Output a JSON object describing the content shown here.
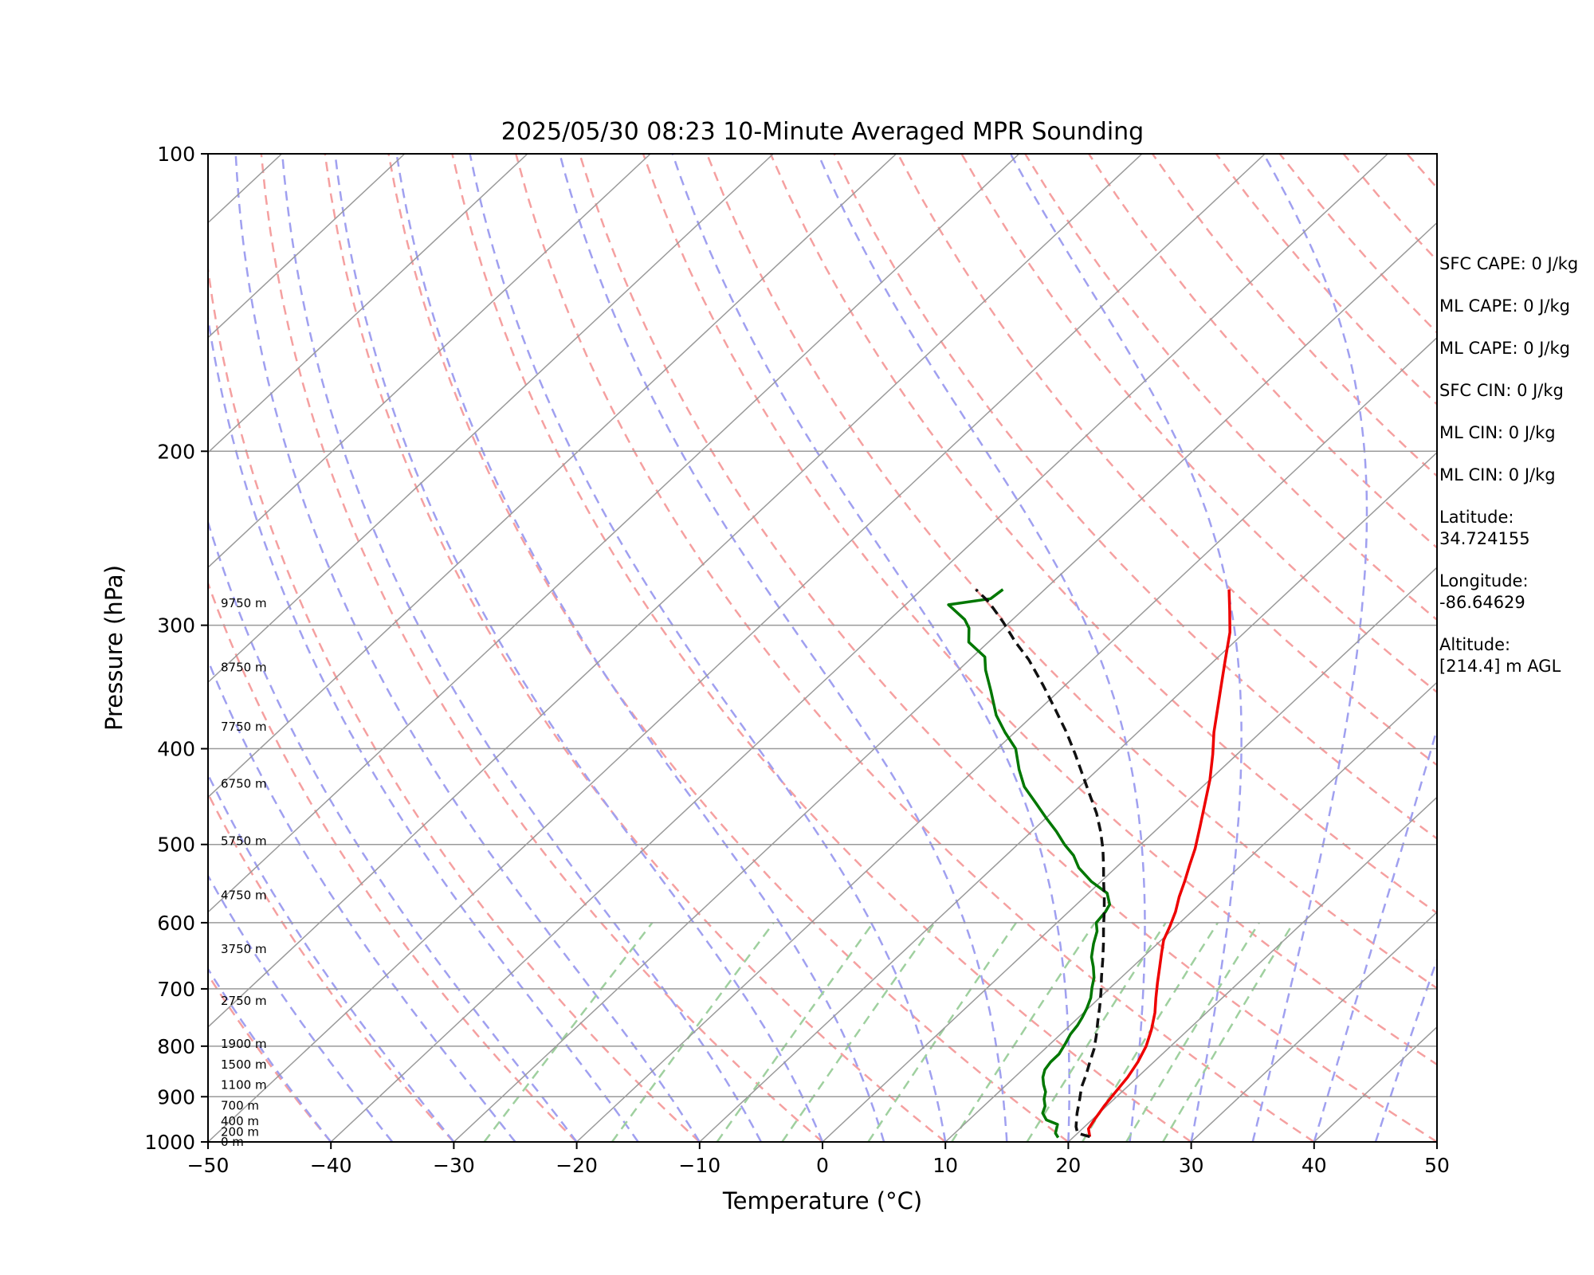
{
  "chart_data": {
    "type": "line",
    "title": "2025/05/30 08:23 10-Minute Averaged MPR Sounding",
    "xlabel": "Temperature (°C)",
    "ylabel": "Pressure (hPa)",
    "xlim": [
      -50,
      50
    ],
    "ylim": [
      1000,
      100
    ],
    "yscale": "log",
    "grid": true,
    "x_ticks": [
      "−50",
      "−40",
      "−30",
      "−20",
      "−10",
      "0",
      "10",
      "20",
      "30",
      "40",
      "50"
    ],
    "y_ticks": [
      "100",
      "200",
      "300",
      "400",
      "500",
      "600",
      "700",
      "800",
      "900",
      "1000"
    ],
    "series": [
      {
        "color": "#ee0000",
        "style": "solid",
        "points": [
          [
            21.3,
            988
          ],
          [
            20.5,
            970
          ],
          [
            20.2,
            950
          ],
          [
            19.8,
            920
          ],
          [
            19.5,
            890
          ],
          [
            19.2,
            860
          ],
          [
            18.7,
            830
          ],
          [
            18.0,
            800
          ],
          [
            17.0,
            770
          ],
          [
            15.8,
            740
          ],
          [
            14.6,
            715
          ],
          [
            13.4,
            690
          ],
          [
            12.2,
            665
          ],
          [
            11.2,
            645
          ],
          [
            10.2,
            625
          ],
          [
            9.5,
            605
          ],
          [
            8.7,
            585
          ],
          [
            7.7,
            565
          ],
          [
            6.8,
            545
          ],
          [
            5.8,
            525
          ],
          [
            4.8,
            505
          ],
          [
            3.3,
            480
          ],
          [
            1.7,
            455
          ],
          [
            0.0,
            430
          ],
          [
            -2.0,
            405
          ],
          [
            -3.8,
            385
          ],
          [
            -5.5,
            365
          ],
          [
            -7.3,
            345
          ],
          [
            -9.2,
            325
          ],
          [
            -11.2,
            305
          ],
          [
            -13.1,
            290
          ],
          [
            -15.0,
            276
          ]
        ]
      },
      {
        "color": "#007700",
        "style": "solid",
        "points": [
          [
            18.8,
            990
          ],
          [
            18.2,
            980
          ],
          [
            17.6,
            960
          ],
          [
            16.3,
            950
          ],
          [
            15.4,
            935
          ],
          [
            15.0,
            920
          ],
          [
            14.3,
            905
          ],
          [
            13.8,
            890
          ],
          [
            13.0,
            875
          ],
          [
            12.3,
            860
          ],
          [
            11.8,
            845
          ],
          [
            11.6,
            830
          ],
          [
            11.6,
            815
          ],
          [
            11.2,
            795
          ],
          [
            10.8,
            778
          ],
          [
            10.6,
            762
          ],
          [
            10.3,
            748
          ],
          [
            9.9,
            733
          ],
          [
            9.3,
            715
          ],
          [
            8.5,
            698
          ],
          [
            7.8,
            682
          ],
          [
            6.8,
            665
          ],
          [
            5.8,
            650
          ],
          [
            4.8,
            630
          ],
          [
            4.0,
            612
          ],
          [
            3.2,
            600
          ],
          [
            3.0,
            585
          ],
          [
            2.7,
            575
          ],
          [
            1.5,
            560
          ],
          [
            -0.8,
            545
          ],
          [
            -3.0,
            528
          ],
          [
            -4.5,
            513
          ],
          [
            -6.2,
            500
          ],
          [
            -8.0,
            485
          ],
          [
            -10.0,
            470
          ],
          [
            -12.0,
            455
          ],
          [
            -14.5,
            437
          ],
          [
            -16.4,
            420
          ],
          [
            -18.5,
            400
          ],
          [
            -20.8,
            385
          ],
          [
            -23.0,
            370
          ],
          [
            -25.5,
            350
          ],
          [
            -27.8,
            333
          ],
          [
            -29.0,
            323
          ],
          [
            -31.6,
            312
          ],
          [
            -32.8,
            302
          ],
          [
            -33.9,
            296
          ],
          [
            -36.5,
            286
          ],
          [
            -33.6,
            282
          ],
          [
            -33.4,
            276
          ]
        ]
      },
      {
        "color": "#111111",
        "style": "dashed",
        "points": [
          [
            21.3,
            988
          ],
          [
            20.0,
            980
          ],
          [
            19.3,
            965
          ],
          [
            18.2,
            935
          ],
          [
            17.2,
            905
          ],
          [
            16.3,
            880
          ],
          [
            15.6,
            855
          ],
          [
            14.8,
            830
          ],
          [
            14.0,
            805
          ],
          [
            13.0,
            780
          ],
          [
            11.9,
            755
          ],
          [
            10.8,
            730
          ],
          [
            9.6,
            705
          ],
          [
            8.3,
            680
          ],
          [
            7.0,
            655
          ],
          [
            5.6,
            630
          ],
          [
            4.1,
            605
          ],
          [
            2.9,
            585
          ],
          [
            1.6,
            565
          ],
          [
            0.2,
            545
          ],
          [
            -1.2,
            525
          ],
          [
            -2.7,
            505
          ],
          [
            -4.4,
            485
          ],
          [
            -6.3,
            465
          ],
          [
            -8.5,
            445
          ],
          [
            -10.8,
            425
          ],
          [
            -13.2,
            405
          ],
          [
            -15.8,
            385
          ],
          [
            -18.7,
            365
          ],
          [
            -21.8,
            345
          ],
          [
            -25.2,
            325
          ],
          [
            -27.8,
            312
          ],
          [
            -30.5,
            298
          ],
          [
            -33.5,
            284
          ],
          [
            -35.6,
            276
          ]
        ]
      }
    ],
    "height_labels": [
      {
        "label": "0 m",
        "p": 1000
      },
      {
        "label": "200 m",
        "p": 977
      },
      {
        "label": "400 m",
        "p": 953
      },
      {
        "label": "700 m",
        "p": 919
      },
      {
        "label": "1100 m",
        "p": 876
      },
      {
        "label": "1500 m",
        "p": 835
      },
      {
        "label": "1900 m",
        "p": 796
      },
      {
        "label": "2750 m",
        "p": 720
      },
      {
        "label": "3750 m",
        "p": 638
      },
      {
        "label": "4750 m",
        "p": 563
      },
      {
        "label": "5750 m",
        "p": 496
      },
      {
        "label": "6750 m",
        "p": 434
      },
      {
        "label": "7750 m",
        "p": 380
      },
      {
        "label": "8750 m",
        "p": 331
      },
      {
        "label": "9750 m",
        "p": 285
      }
    ]
  },
  "stats": {
    "sfc_cape": "SFC CAPE: 0 J/kg",
    "ml_cape_1": "ML CAPE: 0 J/kg",
    "ml_cape_2": "ML CAPE: 0 J/kg",
    "sfc_cin": "SFC CIN: 0 J/kg",
    "ml_cin_1": "ML CIN: 0 J/kg",
    "ml_cin_2": "ML CIN: 0 J/kg",
    "latitude": "Latitude:\n34.724155",
    "longitude": "Longitude:\n-86.64629",
    "altitude": "Altitude:\n[214.4] m AGL"
  },
  "colors": {
    "temperature": "#ee0000",
    "dewpoint": "#007700",
    "parcel": "#111111",
    "dry_adiabat": "#f5a0a0",
    "moist_adiabat": "#a0a0f0",
    "mixing_ratio": "#9fd09f",
    "isotherm": "#9a9a9a"
  }
}
